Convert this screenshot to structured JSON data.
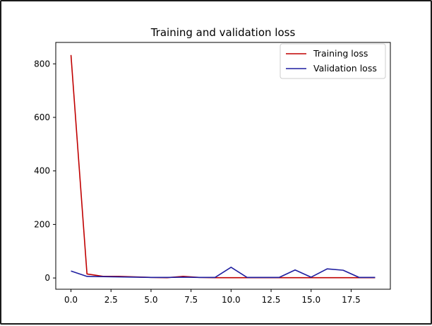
{
  "chart_data": {
    "type": "line",
    "title": "Training and validation loss",
    "xlabel": "",
    "ylabel": "",
    "xlim": [
      -0.95,
      19.95
    ],
    "ylim": [
      -42,
      880
    ],
    "grid": false,
    "legend_position": "top-right",
    "x": [
      0,
      1,
      2,
      3,
      4,
      5,
      6,
      7,
      8,
      9,
      10,
      11,
      12,
      13,
      14,
      15,
      16,
      17,
      18,
      19
    ],
    "series": [
      {
        "name": "Training loss",
        "color": "#c00000",
        "values": [
          833,
          15,
          6,
          6,
          4,
          2,
          1,
          6,
          2,
          1,
          1,
          1,
          1,
          1,
          1,
          1,
          1,
          1,
          1,
          1
        ]
      },
      {
        "name": "Validation loss",
        "color": "#1f1fa0",
        "values": [
          26,
          6,
          5,
          4,
          3,
          2,
          2,
          3,
          2,
          2,
          40,
          2,
          2,
          2,
          30,
          3,
          34,
          29,
          2,
          2
        ]
      }
    ],
    "xticks": [
      0.0,
      2.5,
      5.0,
      7.5,
      10.0,
      12.5,
      15.0,
      17.5
    ],
    "xtick_labels": [
      "0.0",
      "2.5",
      "5.0",
      "7.5",
      "10.0",
      "12.5",
      "15.0",
      "17.5"
    ],
    "yticks": [
      0,
      200,
      400,
      600,
      800
    ],
    "ytick_labels": [
      "0",
      "200",
      "400",
      "600",
      "800"
    ]
  }
}
